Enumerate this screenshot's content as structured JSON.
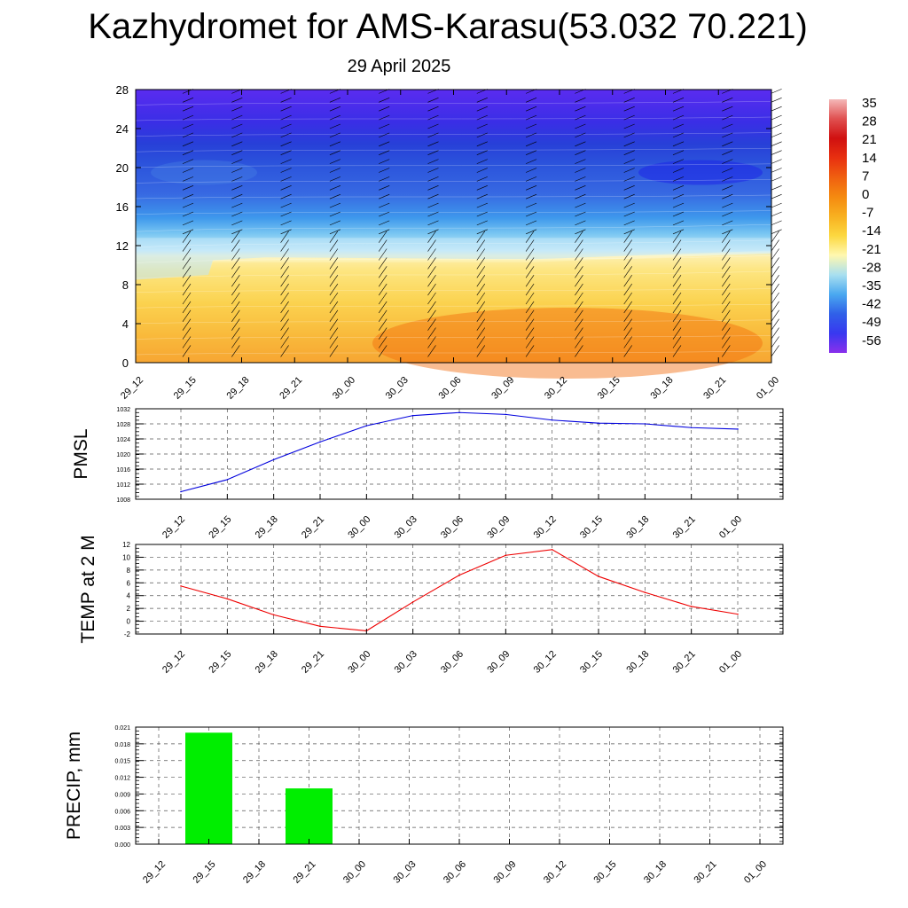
{
  "title": "Kazhydromet for AMS-Karasu(53.032 70.221)",
  "subtitle": "29 April 2025",
  "chart_data": [
    {
      "type": "heatmap",
      "xticks": [
        "29_12",
        "29_15",
        "29_18",
        "29_21",
        "30_00",
        "30_03",
        "30_06",
        "30_09",
        "30_12",
        "30_15",
        "30_18",
        "30_21",
        "01_00"
      ],
      "yticks": [
        "0",
        "4",
        "8",
        "12",
        "16",
        "20",
        "24",
        "28"
      ],
      "ylim": [
        0,
        28
      ],
      "colorbar": {
        "labels": [
          "35",
          "28",
          "21",
          "14",
          "7",
          "0",
          "-7",
          "-14",
          "-21",
          "-28",
          "-35",
          "-42",
          "-49",
          "-56"
        ],
        "colors": [
          "#f4b8b8",
          "#e05050",
          "#d01010",
          "#e83010",
          "#f06010",
          "#f58a10",
          "#f8b020",
          "#fcd840",
          "#fff8b0",
          "#a8dff0",
          "#4aa8f0",
          "#3060e8",
          "#3838f0",
          "#8a30ec"
        ]
      }
    },
    {
      "type": "line",
      "ylabel": "PMSL",
      "x": [
        "29_12",
        "29_15",
        "29_18",
        "29_21",
        "30_00",
        "30_03",
        "30_06",
        "30_09",
        "30_12",
        "30_15",
        "30_18",
        "30_21",
        "01_00"
      ],
      "yticks": [
        "1008",
        "1012",
        "1016",
        "1020",
        "1024",
        "1028",
        "1032"
      ],
      "ylim": [
        1008,
        1032
      ],
      "values": [
        1010.0,
        1013.2,
        1018.5,
        1023.2,
        1027.5,
        1030.2,
        1031.0,
        1030.5,
        1029.0,
        1028.2,
        1028.0,
        1027.0,
        1026.6
      ],
      "color": "#0000dd"
    },
    {
      "type": "line",
      "ylabel": "TEMP at 2 M",
      "x": [
        "29_12",
        "29_15",
        "29_18",
        "29_21",
        "30_00",
        "30_03",
        "30_06",
        "30_09",
        "30_12",
        "30_15",
        "30_18",
        "30_21",
        "01_00"
      ],
      "yticks": [
        "-2",
        "0",
        "2",
        "4",
        "6",
        "8",
        "10",
        "12"
      ],
      "ylim": [
        -2,
        12
      ],
      "values": [
        5.5,
        3.5,
        1.0,
        -0.8,
        -1.5,
        3.0,
        7.2,
        10.3,
        11.2,
        7.0,
        4.5,
        2.3,
        1.1
      ],
      "color": "#ee0000"
    },
    {
      "type": "bar",
      "ylabel": "PRECIP, mm",
      "categories": [
        "29_12",
        "29_15",
        "29_18",
        "29_21",
        "30_00",
        "30_03",
        "30_06",
        "30_09",
        "30_12",
        "30_15",
        "30_18",
        "30_21",
        "01_00"
      ],
      "yticks": [
        "0.000",
        "0.003",
        "0.006",
        "0.009",
        "0.012",
        "0.015",
        "0.018",
        "0.021"
      ],
      "ylim": [
        0,
        0.021
      ],
      "values": [
        0,
        0.02,
        0,
        0.01,
        0,
        0,
        0,
        0,
        0,
        0,
        0,
        0,
        0
      ],
      "color": "#00ee00"
    }
  ]
}
